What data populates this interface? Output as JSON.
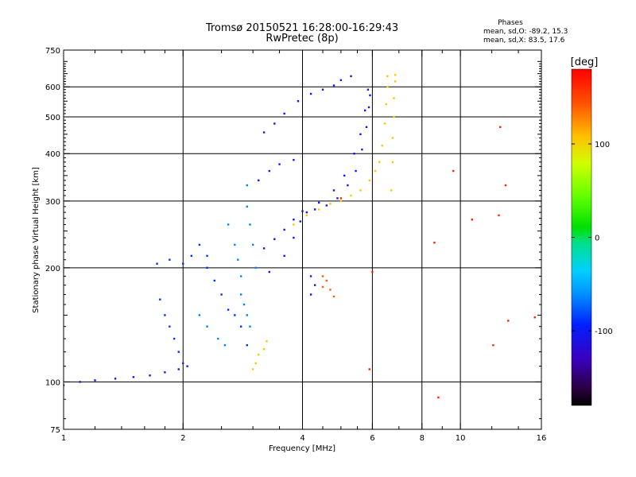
{
  "chart_data": {
    "type": "scatter",
    "title": "Tromsø 20150521 16:28:00-16:29:43",
    "subtitle": "RwPretec (8p)",
    "xlabel": "Frequency [MHz]",
    "ylabel": "Stationary phase Virtual Height [km]",
    "x_scale": "log",
    "y_scale": "log",
    "xlim": [
      1,
      16
    ],
    "ylim": [
      75,
      750
    ],
    "x_ticks": [
      1,
      2,
      4,
      6,
      8,
      10,
      16
    ],
    "x_tick_labels": [
      "1",
      "2",
      "4",
      "6",
      "8",
      "10",
      "16"
    ],
    "x_minor_ticks": [
      1.2,
      1.4,
      1.6,
      1.8,
      2.5,
      3,
      3.5,
      4.5,
      5,
      5.5,
      7,
      9,
      12,
      14
    ],
    "y_ticks": [
      75,
      100,
      200,
      300,
      400,
      500,
      600,
      750
    ],
    "y_tick_labels": [
      "75",
      "100",
      "200",
      "300",
      "400",
      "500",
      "600",
      "750"
    ],
    "grid_x": [
      2,
      4,
      6,
      8,
      10
    ],
    "grid_y": [
      100,
      200,
      300,
      400,
      500,
      600
    ],
    "grid": true,
    "stats": {
      "header": "Phases",
      "line_o": "mean, sd,O: -89.2, 15.3",
      "line_x": "mean, sd,X:  83.5, 17.6"
    },
    "colorbar": {
      "label": "[deg]",
      "range": [
        -180,
        180
      ],
      "ticks": [
        100,
        0,
        -100
      ],
      "tick_labels": [
        "100",
        "0",
        "-100"
      ]
    },
    "series": [
      {
        "phase_deg": -105,
        "traces": [
          [
            [
              1.0,
              98
            ],
            [
              1.1,
              100
            ],
            [
              1.2,
              101
            ],
            [
              1.35,
              102
            ],
            [
              1.5,
              103
            ],
            [
              1.65,
              104
            ],
            [
              1.8,
              106
            ],
            [
              1.95,
              108
            ],
            [
              2.05,
              110
            ]
          ],
          [
            [
              3.3,
              195
            ],
            [
              3.6,
              215
            ],
            [
              3.8,
              240
            ],
            [
              3.95,
              265
            ],
            [
              4.1,
              280
            ],
            [
              4.3,
              285
            ],
            [
              4.6,
              292
            ],
            [
              4.9,
              305
            ],
            [
              5.2,
              330
            ],
            [
              5.45,
              360
            ],
            [
              5.65,
              410
            ],
            [
              5.8,
              470
            ],
            [
              5.88,
              530
            ],
            [
              5.92,
              570
            ]
          ],
          [
            [
              3.2,
              225
            ],
            [
              3.4,
              238
            ],
            [
              3.6,
              252
            ],
            [
              3.8,
              268
            ],
            [
              4.0,
              282
            ],
            [
              4.4,
              297
            ],
            [
              4.8,
              320
            ],
            [
              5.1,
              350
            ],
            [
              5.4,
              400
            ],
            [
              5.6,
              450
            ],
            [
              5.75,
              520
            ],
            [
              5.85,
              590
            ]
          ],
          [
            [
              3.2,
              455
            ],
            [
              3.4,
              480
            ],
            [
              3.6,
              510
            ],
            [
              3.9,
              550
            ],
            [
              4.2,
              575
            ],
            [
              4.5,
              590
            ],
            [
              4.8,
              605
            ],
            [
              5.0,
              625
            ],
            [
              5.3,
              640
            ]
          ],
          [
            [
              3.1,
              340
            ],
            [
              3.3,
              360
            ],
            [
              3.5,
              375
            ],
            [
              3.8,
              385
            ]
          ],
          [
            [
              4.2,
              190
            ],
            [
              4.3,
              180
            ],
            [
              4.2,
              170
            ]
          ]
        ]
      },
      {
        "phase_deg": -90,
        "traces": [
          [
            [
              1.75,
              165
            ],
            [
              1.8,
              150
            ],
            [
              1.85,
              140
            ],
            [
              1.9,
              130
            ],
            [
              1.95,
              120
            ],
            [
              2.0,
              112
            ]
          ],
          [
            [
              1.72,
              205
            ],
            [
              1.85,
              210
            ],
            [
              2.0,
              205
            ],
            [
              2.1,
              215
            ],
            [
              2.2,
              230
            ],
            [
              2.3,
              215
            ]
          ],
          [
            [
              2.3,
              200
            ],
            [
              2.4,
              185
            ],
            [
              2.5,
              170
            ],
            [
              2.6,
              155
            ],
            [
              2.7,
              150
            ],
            [
              2.8,
              140
            ],
            [
              2.9,
              125
            ]
          ]
        ]
      },
      {
        "phase_deg": -65,
        "traces": [
          [
            [
              2.6,
              260
            ],
            [
              2.7,
              230
            ],
            [
              2.75,
              210
            ],
            [
              2.8,
              190
            ],
            [
              2.8,
              170
            ],
            [
              2.85,
              160
            ],
            [
              2.9,
              150
            ],
            [
              2.95,
              140
            ]
          ],
          [
            [
              2.9,
              330
            ],
            [
              2.9,
              290
            ],
            [
              2.95,
              260
            ],
            [
              3.0,
              230
            ],
            [
              3.05,
              200
            ]
          ],
          [
            [
              2.2,
              150
            ],
            [
              2.3,
              140
            ],
            [
              2.45,
              130
            ],
            [
              2.55,
              125
            ]
          ]
        ]
      },
      {
        "phase_deg": 105,
        "traces": [
          [
            [
              3.8,
              260
            ],
            [
              4.1,
              275
            ],
            [
              4.4,
              285
            ],
            [
              4.7,
              295
            ],
            [
              5.0,
              300
            ],
            [
              5.3,
              310
            ],
            [
              5.6,
              320
            ],
            [
              5.9,
              340
            ],
            [
              6.1,
              360
            ],
            [
              6.25,
              380
            ],
            [
              6.35,
              420
            ],
            [
              6.45,
              480
            ],
            [
              6.5,
              540
            ],
            [
              6.55,
              600
            ],
            [
              6.55,
              640
            ]
          ],
          [
            [
              6.7,
              320
            ],
            [
              6.75,
              380
            ],
            [
              6.75,
              440
            ],
            [
              6.8,
              500
            ],
            [
              6.8,
              560
            ],
            [
              6.85,
              620
            ],
            [
              6.85,
              645
            ]
          ],
          [
            [
              3.0,
              108
            ],
            [
              3.05,
              112
            ],
            [
              3.1,
              118
            ],
            [
              3.2,
              122
            ],
            [
              3.25,
              128
            ]
          ]
        ]
      },
      {
        "phase_deg": 140,
        "traces": [
          [
            [
              4.5,
              190
            ],
            [
              4.6,
              185
            ],
            [
              4.7,
              175
            ],
            [
              4.8,
              168
            ],
            [
              4.5,
              178
            ]
          ]
        ]
      },
      {
        "phase_deg": 165,
        "traces": [
          [
            [
              8.6,
              233
            ],
            [
              8.8,
              91
            ],
            [
              10.7,
              268
            ],
            [
              12.5,
              275
            ],
            [
              13.2,
              145
            ],
            [
              15.4,
              148
            ],
            [
              12.1,
              125
            ],
            [
              12.6,
              470
            ],
            [
              13.0,
              330
            ],
            [
              9.6,
              360
            ],
            [
              5.9,
              108
            ],
            [
              6.0,
              195
            ],
            [
              5.0,
              305
            ]
          ]
        ]
      }
    ]
  }
}
